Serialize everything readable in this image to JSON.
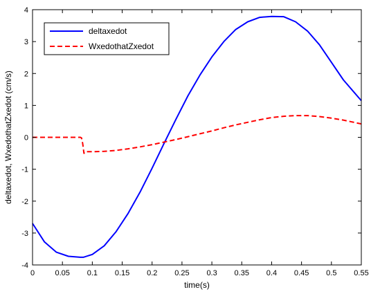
{
  "chart_data": {
    "type": "line",
    "title": "",
    "xlabel": "time(s)",
    "ylabel": "deltaxedot, WxedothatZxedot (cm/s)",
    "xlim": [
      0,
      0.55
    ],
    "ylim": [
      -4,
      4
    ],
    "xticks": [
      0,
      0.05,
      0.1,
      0.15,
      0.2,
      0.25,
      0.3,
      0.35,
      0.4,
      0.45,
      0.5,
      0.55
    ],
    "xtick_labels": [
      "0",
      "0.05",
      "0.1",
      "0.15",
      "0.2",
      "0.25",
      "0.3",
      "0.35",
      "0.4",
      "0.45",
      "0.5",
      "0.55"
    ],
    "yticks": [
      -4,
      -3,
      -2,
      -1,
      0,
      1,
      2,
      3,
      4
    ],
    "ytick_labels": [
      "-4",
      "-3",
      "-2",
      "-1",
      "0",
      "1",
      "2",
      "3",
      "4"
    ],
    "grid": false,
    "legend": {
      "placement": "top-left",
      "entries": [
        "deltaxedot",
        "WxedothatZxedot"
      ]
    },
    "series": [
      {
        "name": "deltaxedot",
        "color": "#0000ff",
        "style": "solid",
        "x": [
          0,
          0.02,
          0.04,
          0.06,
          0.08,
          0.085,
          0.1,
          0.12,
          0.14,
          0.16,
          0.18,
          0.2,
          0.22,
          0.24,
          0.26,
          0.28,
          0.3,
          0.32,
          0.34,
          0.36,
          0.38,
          0.4,
          0.42,
          0.44,
          0.46,
          0.48,
          0.5,
          0.52,
          0.55
        ],
        "y": [
          -2.7,
          -3.28,
          -3.6,
          -3.73,
          -3.76,
          -3.76,
          -3.67,
          -3.4,
          -2.95,
          -2.38,
          -1.71,
          -0.97,
          -0.19,
          0.57,
          1.3,
          1.95,
          2.52,
          3.0,
          3.38,
          3.62,
          3.76,
          3.79,
          3.78,
          3.62,
          3.33,
          2.9,
          2.35,
          1.8,
          1.15
        ]
      },
      {
        "name": "WxedothatZxedot",
        "color": "#ff0000",
        "style": "dashed",
        "x": [
          0,
          0.02,
          0.04,
          0.06,
          0.08,
          0.082,
          0.084,
          0.086,
          0.088,
          0.09,
          0.1,
          0.12,
          0.14,
          0.16,
          0.18,
          0.2,
          0.22,
          0.24,
          0.26,
          0.28,
          0.3,
          0.32,
          0.34,
          0.36,
          0.38,
          0.4,
          0.42,
          0.44,
          0.46,
          0.48,
          0.5,
          0.52,
          0.55
        ],
        "y": [
          0,
          0,
          0,
          0,
          0,
          -0.02,
          -0.2,
          -0.5,
          -0.45,
          -0.45,
          -0.45,
          -0.44,
          -0.41,
          -0.36,
          -0.3,
          -0.23,
          -0.15,
          -0.07,
          0.02,
          0.11,
          0.2,
          0.3,
          0.39,
          0.47,
          0.55,
          0.62,
          0.66,
          0.68,
          0.68,
          0.65,
          0.6,
          0.54,
          0.42
        ]
      }
    ]
  }
}
